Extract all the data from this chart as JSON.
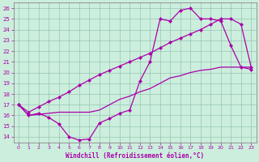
{
  "xlabel": "Windchill (Refroidissement éolien,°C)",
  "bg_color": "#cceedd",
  "line_color": "#aa00aa",
  "xlim": [
    -0.5,
    23.5
  ],
  "ylim": [
    13.5,
    26.5
  ],
  "xticks": [
    0,
    1,
    2,
    3,
    4,
    5,
    6,
    7,
    8,
    9,
    10,
    11,
    12,
    13,
    14,
    15,
    16,
    17,
    18,
    19,
    20,
    21,
    22,
    23
  ],
  "yticks": [
    14,
    15,
    16,
    17,
    18,
    19,
    20,
    21,
    22,
    23,
    24,
    25,
    26
  ],
  "curve1_x": [
    0,
    1,
    2,
    3,
    4,
    5,
    6,
    7,
    8,
    9,
    10,
    11,
    12,
    13,
    14,
    15,
    16,
    17,
    18,
    19,
    20,
    21,
    22,
    23
  ],
  "curve1_y": [
    17.0,
    16.0,
    16.2,
    15.8,
    15.2,
    14.0,
    13.7,
    13.8,
    15.3,
    15.7,
    16.2,
    16.5,
    19.2,
    21.0,
    25.0,
    24.8,
    25.8,
    26.0,
    25.0,
    25.0,
    24.8,
    22.5,
    20.5,
    20.3
  ],
  "curve2_x": [
    0,
    1,
    2,
    3,
    4,
    5,
    6,
    7,
    8,
    9,
    10,
    11,
    12,
    13,
    14,
    15,
    16,
    17,
    18,
    19,
    20,
    21,
    22,
    23
  ],
  "curve2_y": [
    17.0,
    16.0,
    16.1,
    16.2,
    16.3,
    16.3,
    16.3,
    16.3,
    16.5,
    17.0,
    17.5,
    17.8,
    18.2,
    18.5,
    19.0,
    19.5,
    19.7,
    20.0,
    20.2,
    20.3,
    20.5,
    20.5,
    20.5,
    20.5
  ],
  "curve3_x": [
    0,
    1,
    2,
    3,
    4,
    5,
    6,
    7,
    8,
    9,
    10,
    11,
    12,
    13,
    14,
    15,
    16,
    17,
    18,
    19,
    20,
    21,
    22,
    23
  ],
  "curve3_y": [
    17.0,
    16.3,
    16.8,
    17.3,
    17.7,
    18.2,
    18.8,
    19.3,
    19.8,
    20.2,
    20.6,
    21.0,
    21.4,
    21.8,
    22.3,
    22.8,
    23.2,
    23.6,
    24.0,
    24.5,
    25.0,
    25.0,
    24.5,
    20.5
  ]
}
